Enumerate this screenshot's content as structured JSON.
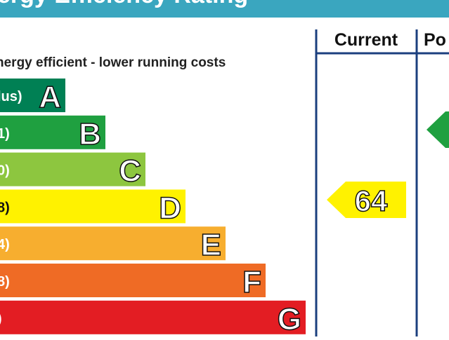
{
  "header": {
    "title": "ergy Efficiency Rating"
  },
  "subtitle": "nergy efficient - lower running costs",
  "bands": [
    {
      "range": "lus)",
      "letter": "A"
    },
    {
      "range": "1)",
      "letter": "B"
    },
    {
      "range": "0)",
      "letter": "C"
    },
    {
      "range": "8)",
      "letter": "D"
    },
    {
      "range": "4)",
      "letter": "E"
    },
    {
      "range": "8)",
      "letter": "F"
    },
    {
      "range": ")",
      "letter": "G"
    }
  ],
  "columns": {
    "current": "Current",
    "potential": "Po"
  },
  "current_rating": "64"
}
